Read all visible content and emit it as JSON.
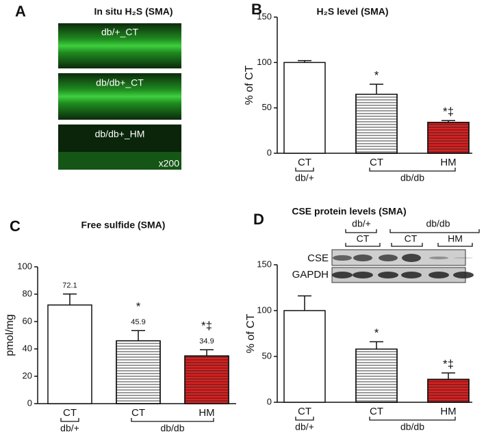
{
  "panel_a": {
    "letter": "A",
    "title": "In situ H₂S  (SMA)",
    "images": [
      "db/+_CT",
      "db/db+_CT",
      "db/db+_HM"
    ],
    "magnification": "x200"
  },
  "chart_data": [
    {
      "type": "bar",
      "panel": "B",
      "title": "H₂S level (SMA)",
      "ylabel": "% of CT",
      "categories": [
        "CT",
        "CT",
        "HM"
      ],
      "groups": [
        "db/+",
        "db/db"
      ],
      "values": [
        100,
        65,
        34
      ],
      "errors": [
        2,
        11,
        2
      ],
      "colors": [
        "#ffffff",
        "#ffffff",
        "#e02020"
      ],
      "hatch": [
        false,
        true,
        true
      ],
      "annotations": [
        null,
        "*",
        "*‡"
      ],
      "show_values": false,
      "ylim": [
        0,
        150
      ],
      "yticks": [
        0,
        50,
        100,
        150
      ]
    },
    {
      "type": "bar",
      "panel": "C",
      "title": "Free sulfide (SMA)",
      "ylabel": "pmol/mg",
      "categories": [
        "CT",
        "CT",
        "HM"
      ],
      "groups": [
        "db/+",
        "db/db"
      ],
      "values": [
        72.1,
        45.9,
        34.9
      ],
      "errors": [
        8,
        7.5,
        4.5
      ],
      "colors": [
        "#ffffff",
        "#ffffff",
        "#e02020"
      ],
      "hatch": [
        false,
        true,
        true
      ],
      "annotations": [
        null,
        "*",
        "*‡"
      ],
      "show_values": true,
      "ylim": [
        0,
        100
      ],
      "yticks": [
        0,
        20,
        40,
        60,
        80,
        100
      ]
    },
    {
      "type": "bar",
      "panel": "D",
      "title": "CSE protein levels (SMA)",
      "ylabel": "% of CT",
      "categories": [
        "CT",
        "CT",
        "HM"
      ],
      "groups": [
        "db/+",
        "db/db"
      ],
      "values": [
        100,
        58,
        25
      ],
      "errors": [
        16,
        8,
        7
      ],
      "colors": [
        "#ffffff",
        "#ffffff",
        "#e02020"
      ],
      "hatch": [
        false,
        true,
        true
      ],
      "annotations": [
        null,
        "*",
        "*‡"
      ],
      "show_values": false,
      "ylim": [
        0,
        150
      ],
      "yticks": [
        0,
        50,
        100,
        150
      ],
      "blot": {
        "groups": [
          "db/+",
          "db/db"
        ],
        "lanes": [
          "CT",
          "CT",
          "HM"
        ],
        "rows": [
          "CSE",
          "GAPDH"
        ]
      }
    }
  ]
}
